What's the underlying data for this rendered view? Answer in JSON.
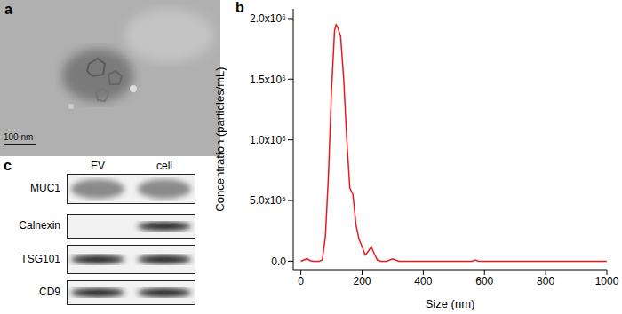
{
  "panel_a": {
    "label": "a",
    "scale_bar": "100 nm"
  },
  "chart_data": {
    "panel_label": "b",
    "type": "line",
    "x_label": "Size (nm)",
    "y_label": "Concentration (particles/mL)",
    "x": [
      0,
      10,
      20,
      30,
      40,
      50,
      60,
      70,
      80,
      90,
      100,
      110,
      115,
      120,
      130,
      140,
      150,
      160,
      170,
      180,
      190,
      200,
      210,
      220,
      230,
      240,
      250,
      260,
      280,
      300,
      320,
      400,
      500,
      560,
      570,
      580,
      700,
      800,
      900,
      1000
    ],
    "values": [
      0,
      10000,
      20000,
      5000,
      0,
      0,
      0,
      10000,
      200000,
      700000,
      1400000,
      1900000,
      1950000,
      1930000,
      1850000,
      1500000,
      1000000,
      600000,
      550000,
      300000,
      180000,
      120000,
      50000,
      80000,
      120000,
      60000,
      10000,
      0,
      0,
      20000,
      0,
      0,
      0,
      0,
      10000,
      0,
      0,
      0,
      0,
      0
    ],
    "color": "#e8191f",
    "marker": "none",
    "xlim": [
      -25,
      1000
    ],
    "xticks": [
      0,
      200,
      400,
      600,
      800,
      1000
    ],
    "ylim": [
      -70000,
      2080000
    ],
    "yticks": [
      {
        "value": 0,
        "label": "0.0"
      },
      {
        "value": 500000,
        "label": "5.0x10⁵"
      },
      {
        "value": 1000000,
        "label": "1.0x10⁶"
      },
      {
        "value": 1500000,
        "label": "1.5x10⁶"
      },
      {
        "value": 2000000,
        "label": "2.0x10⁶"
      }
    ],
    "grid": false
  },
  "panel_c": {
    "label": "c",
    "columns": [
      "EV",
      "cell"
    ],
    "rows": [
      {
        "label": "MUC1",
        "bands": [
          true,
          true
        ]
      },
      {
        "label": "Calnexin",
        "bands": [
          false,
          true
        ]
      },
      {
        "label": "TSG101",
        "bands": [
          true,
          true
        ]
      },
      {
        "label": "CD9",
        "bands": [
          true,
          true
        ]
      }
    ]
  }
}
